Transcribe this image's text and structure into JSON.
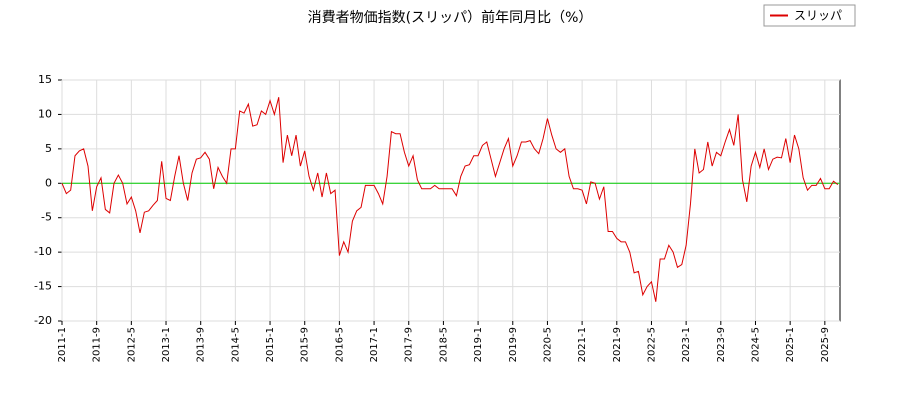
{
  "chart_data": {
    "type": "line",
    "title": "消費者物価指数(スリッパ）前年同月比（%）",
    "categories": [
      "2011-1",
      null,
      null,
      null,
      null,
      null,
      null,
      null,
      "2011-9",
      null,
      null,
      null,
      null,
      null,
      null,
      null,
      "2012-5",
      null,
      null,
      null,
      null,
      null,
      null,
      null,
      "2013-1",
      null,
      null,
      null,
      null,
      null,
      null,
      null,
      "2013-9",
      null,
      null,
      null,
      null,
      null,
      null,
      null,
      "2014-5",
      null,
      null,
      null,
      null,
      null,
      null,
      null,
      "2015-1",
      null,
      null,
      null,
      null,
      null,
      null,
      null,
      "2015-9",
      null,
      null,
      null,
      null,
      null,
      null,
      null,
      "2016-5",
      null,
      null,
      null,
      null,
      null,
      null,
      null,
      "2017-1",
      null,
      null,
      null,
      null,
      null,
      null,
      null,
      "2017-9",
      null,
      null,
      null,
      null,
      null,
      null,
      null,
      "2018-5",
      null,
      null,
      null,
      null,
      null,
      null,
      null,
      "2019-1",
      null,
      null,
      null,
      null,
      null,
      null,
      null,
      "2019-9",
      null,
      null,
      null,
      null,
      null,
      null,
      null,
      "2020-5",
      null,
      null,
      null,
      null,
      null,
      null,
      null,
      "2021-1",
      null,
      null,
      null,
      null,
      null,
      null,
      null,
      "2021-9",
      null,
      null,
      null,
      null,
      null,
      null,
      null,
      "2022-5",
      null,
      null,
      null,
      null,
      null,
      null,
      null,
      "2023-1",
      null,
      null,
      null,
      null,
      null,
      null,
      null,
      "2023-9",
      null,
      null,
      null,
      null,
      null,
      null,
      null,
      "2024-5",
      null,
      null,
      null,
      null,
      null,
      null,
      null,
      "2025-1",
      null,
      null,
      null,
      null,
      null,
      null,
      null,
      "2025-9",
      null,
      null,
      null
    ],
    "series": [
      {
        "name": "スリッパ",
        "color": "#dd0000",
        "values": [
          0,
          -1.5,
          -1,
          4,
          4.7,
          5,
          2.5,
          -4,
          -0.5,
          0.8,
          -3.8,
          -4.3,
          0,
          1.2,
          0,
          -3,
          -2,
          -4,
          -7.2,
          -4.2,
          -4,
          -3.2,
          -2.5,
          3.2,
          -2.2,
          -2.5,
          1,
          4,
          0,
          -2.5,
          1.5,
          3.5,
          3.7,
          4.5,
          3.5,
          -0.8,
          2.3,
          1,
          0,
          5,
          5,
          10.5,
          10.2,
          11.5,
          8.3,
          8.5,
          10.5,
          10,
          12,
          10,
          12.5,
          3,
          7,
          4,
          7,
          2.5,
          4.7,
          1,
          -1,
          1.5,
          -2,
          1.5,
          -1.5,
          -1,
          -10.5,
          -8.5,
          -10,
          -5.5,
          -4,
          -3.5,
          -0.3,
          -0.3,
          -0.3,
          -1.5,
          -3,
          1,
          7.5,
          7.2,
          7.2,
          4.5,
          2.5,
          4,
          0.5,
          -0.8,
          -0.8,
          -0.8,
          -0.3,
          -0.8,
          -0.8,
          -0.8,
          -0.8,
          -1.8,
          1,
          2.5,
          2.7,
          4,
          4,
          5.5,
          6,
          3.5,
          1,
          3,
          5,
          6.5,
          2.5,
          4,
          6,
          6,
          6.2,
          5,
          4.3,
          6.5,
          9.4,
          7,
          5,
          4.5,
          5,
          1,
          -0.8,
          -0.8,
          -1,
          -3,
          0.2,
          0,
          -2.3,
          -0.5,
          -7,
          -7,
          -8,
          -8.5,
          -8.5,
          -10,
          -13,
          -12.8,
          -16.2,
          -15,
          -14.3,
          -17.2,
          -11,
          -11,
          -9,
          -10,
          -12.2,
          -11.8,
          -9,
          -3,
          5,
          1.5,
          2,
          6,
          2.5,
          4.5,
          4,
          6,
          7.8,
          5.5,
          10,
          0.5,
          -2.7,
          2.5,
          4.5,
          2.3,
          5,
          2,
          3.5,
          3.8,
          3.7,
          6.5,
          3,
          7,
          5,
          0.8,
          -1,
          -0.3,
          -0.3,
          0.7,
          -0.8,
          -0.8,
          0.3,
          -0.2
        ]
      }
    ],
    "ylim": [
      -20,
      15
    ],
    "yticks": [
      -20,
      -15,
      -10,
      -5,
      0,
      5,
      10,
      15
    ],
    "grid": true,
    "zero_line_color": "#00cc00",
    "legend": "top-right"
  }
}
